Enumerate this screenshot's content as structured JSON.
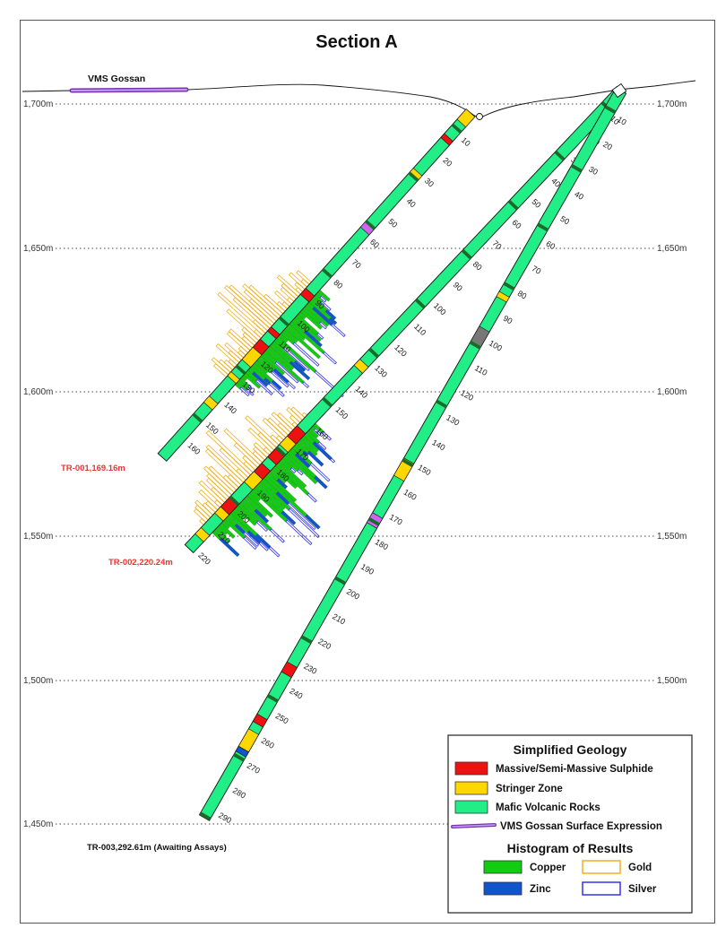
{
  "title": "Section A",
  "colors": {
    "massive_sulphide": "#ee1111",
    "stringer": "#ffd700",
    "mafic": "#22ee88",
    "gossan": "#9955dd",
    "copper": "#11cc11",
    "zinc": "#1155cc",
    "gold": "#f0b020",
    "silver": "#3333ee",
    "hole_label": "#ee3333"
  },
  "elevations": [
    "1,700m",
    "1,650m",
    "1,600m",
    "1,550m",
    "1,500m",
    "1,450m"
  ],
  "gossan_label": "VMS Gossan",
  "holes": [
    {
      "id": "TR-001",
      "label": "TR-001,169.16m",
      "depth_labels": [
        "10",
        "20",
        "30",
        "40",
        "50",
        "60",
        "70",
        "80",
        "90",
        "100",
        "110",
        "120",
        "130",
        "140",
        "150",
        "160"
      ]
    },
    {
      "id": "TR-002",
      "label": "TR-002,220.24m",
      "depth_labels": [
        "10",
        "20",
        "30",
        "40",
        "50",
        "60",
        "70",
        "80",
        "90",
        "100",
        "110",
        "120",
        "130",
        "140",
        "150",
        "160",
        "170",
        "180",
        "190",
        "200",
        "210",
        "220"
      ]
    },
    {
      "id": "TR-003",
      "label": "TR-003,292.61m (Awaiting Assays)",
      "depth_labels": [
        "10",
        "20",
        "30",
        "40",
        "50",
        "60",
        "70",
        "80",
        "90",
        "100",
        "110",
        "120",
        "130",
        "140",
        "150",
        "160",
        "170",
        "180",
        "190",
        "200",
        "210",
        "220",
        "230",
        "240",
        "250",
        "260",
        "270",
        "280",
        "290"
      ]
    }
  ],
  "legend": {
    "geology_title": "Simplified Geology",
    "geology_items": [
      {
        "label": "Massive/Semi-Massive Sulphide",
        "color": "#ee1111"
      },
      {
        "label": "Stringer Zone",
        "color": "#ffd700"
      },
      {
        "label": "Mafic Volcanic Rocks",
        "color": "#22ee88"
      }
    ],
    "gossan_item": "VMS Gossan Surface Expression",
    "histogram_title": "Histogram of Results",
    "histogram_items": [
      {
        "label": "Copper",
        "color": "#11cc11",
        "filled": true
      },
      {
        "label": "Gold",
        "color": "#f0b020",
        "filled": false
      },
      {
        "label": "Zinc",
        "color": "#1155cc",
        "filled": true
      },
      {
        "label": "Silver",
        "color": "#3333ee",
        "filled": false
      }
    ]
  }
}
